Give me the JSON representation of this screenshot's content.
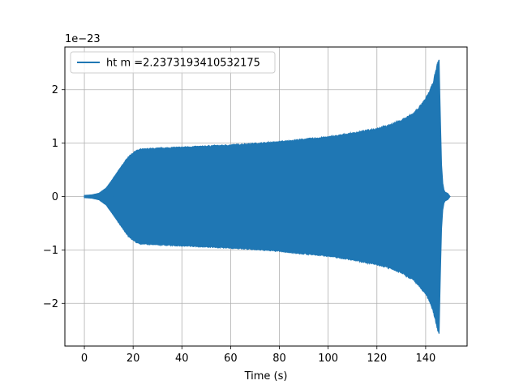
{
  "chart_data": {
    "type": "line",
    "title": "",
    "xlabel": "Time (s)",
    "ylabel": "",
    "y_offset_label": "1e−23",
    "xlim": [
      -8,
      157
    ],
    "ylim": [
      -2.8,
      2.8
    ],
    "x_ticks": [
      0,
      20,
      40,
      60,
      80,
      100,
      120,
      140
    ],
    "y_ticks": [
      -2,
      -1,
      0,
      1,
      2
    ],
    "x_tick_labels": [
      "0",
      "20",
      "40",
      "60",
      "80",
      "100",
      "120",
      "140"
    ],
    "y_tick_labels": [
      "−2",
      "−1",
      "0",
      "1",
      "2"
    ],
    "grid": true,
    "legend_position": "upper-left",
    "series": [
      {
        "name": "ht m =2.2373193410532175",
        "color": "#1f77b4",
        "style": "dense oscillation (chirp) rendered as filled envelope",
        "envelope": {
          "t": [
            0,
            3,
            6,
            9,
            12,
            15,
            18,
            21,
            23,
            30,
            40,
            50,
            60,
            70,
            80,
            90,
            100,
            110,
            120,
            125,
            130,
            135,
            138,
            140,
            142,
            143,
            144,
            145,
            145.5,
            146,
            146.5,
            147,
            147.5,
            148,
            149,
            150
          ],
          "amplitude": [
            0.02,
            0.03,
            0.06,
            0.16,
            0.35,
            0.55,
            0.74,
            0.85,
            0.88,
            0.9,
            0.92,
            0.94,
            0.96,
            0.99,
            1.02,
            1.07,
            1.11,
            1.18,
            1.27,
            1.33,
            1.42,
            1.55,
            1.7,
            1.82,
            2.0,
            2.12,
            2.3,
            2.5,
            2.55,
            1.5,
            0.6,
            0.25,
            0.12,
            0.08,
            0.06,
            0.0
          ]
        },
        "peak_value": 2.55,
        "peak_time": 145.5
      }
    ]
  }
}
